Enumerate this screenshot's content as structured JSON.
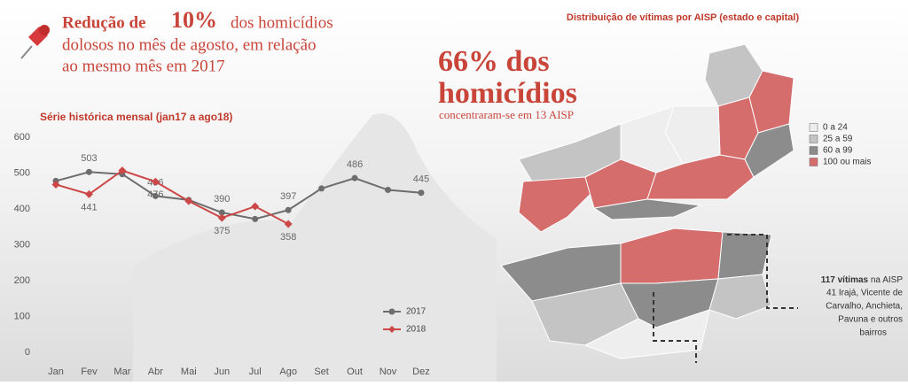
{
  "headline": {
    "lead": "Redução de",
    "highlight": "10%",
    "rest_1": "dos homicídios",
    "rest_2": "dolosos no mês de agosto, em relação",
    "rest_3": "ao mesmo mês em 2017"
  },
  "chart_data": {
    "type": "line",
    "title": "Série histórica mensal (jan17 a ago18)",
    "categories": [
      "Jan",
      "Fev",
      "Mar",
      "Abr",
      "Mai",
      "Jun",
      "Jul",
      "Ago",
      "Set",
      "Out",
      "Nov",
      "Dez"
    ],
    "series": [
      {
        "name": "2017",
        "color": "#6d6d6d",
        "marker": "circle",
        "values": [
          478,
          503,
          497,
          436,
          425,
          390,
          372,
          397,
          457,
          486,
          453,
          445
        ],
        "value_labels": [
          null,
          "503",
          null,
          "436",
          null,
          "390",
          null,
          "397",
          null,
          "486",
          null,
          "445"
        ],
        "label_side": "above"
      },
      {
        "name": "2018",
        "color": "#cc4848",
        "marker": "diamond",
        "values": [
          468,
          441,
          507,
          476,
          422,
          375,
          407,
          358,
          null,
          null,
          null,
          null
        ],
        "value_labels": [
          null,
          "441",
          null,
          "476",
          null,
          "375",
          null,
          "358",
          null,
          null,
          null,
          null
        ],
        "label_side": "below"
      }
    ],
    "ylim": [
      0,
      600
    ],
    "yticks": [
      0,
      100,
      200,
      300,
      400,
      500,
      600
    ],
    "grid": false,
    "legend": "lower right"
  },
  "map": {
    "title": "Distribuição de vítimas por AISP (estado e capital)",
    "big_1": "66% dos",
    "big_2": "homicídios",
    "sub": "concentraram-se em 13 AISP",
    "legend": [
      {
        "label": "0 a 24",
        "color": "#eeeeee"
      },
      {
        "label": "25 a 59",
        "color": "#c4c4c4"
      },
      {
        "label": "60 a 99",
        "color": "#8c8c8c"
      },
      {
        "label": "100 ou mais",
        "color": "#d56d6d"
      }
    ],
    "note_bold": "117 vítimas",
    "note_1": "na AISP",
    "note_2": "41 Irajá, Vicente de",
    "note_3": "Carvalho, Anchieta,",
    "note_4": "Pavuna e outros",
    "note_5": "bairros"
  }
}
